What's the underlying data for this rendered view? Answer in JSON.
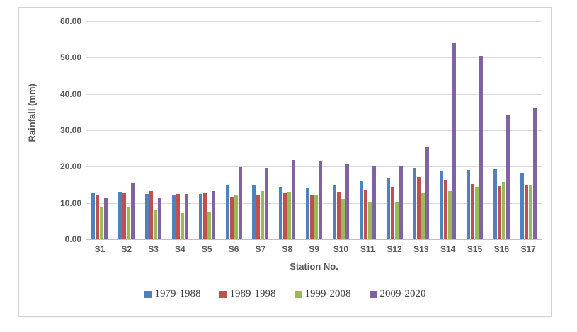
{
  "chart_data": {
    "type": "bar",
    "title": "",
    "xlabel": "Station No.",
    "ylabel": "Rainfall (mm)",
    "ylim": [
      0,
      60
    ],
    "ytick_labels": [
      "60.00",
      "50.00",
      "40.00",
      "30.00",
      "20.00",
      "10.00",
      "0.00"
    ],
    "grid": true,
    "legend_position": "bottom",
    "categories": [
      "S1",
      "S2",
      "S3",
      "S4",
      "S5",
      "S6",
      "S7",
      "S8",
      "S9",
      "S10",
      "S11",
      "S12",
      "S13",
      "S14",
      "S15",
      "S16",
      "S17"
    ],
    "series": [
      {
        "name": "1979-1988",
        "color": "#4F81BD",
        "values": [
          12.7,
          13.0,
          12.5,
          12.2,
          12.4,
          15.1,
          15.0,
          14.5,
          14.0,
          14.8,
          16.1,
          17.0,
          19.6,
          18.9,
          19.0,
          19.3,
          18.1
        ]
      },
      {
        "name": "1989-1998",
        "color": "#C0504D",
        "values": [
          12.3,
          12.7,
          13.3,
          12.4,
          12.8,
          11.7,
          12.2,
          12.6,
          12.0,
          13.0,
          13.4,
          14.5,
          17.2,
          16.3,
          15.2,
          14.6,
          15.0
        ]
      },
      {
        "name": "1999-2008",
        "color": "#9BBB59",
        "values": [
          8.9,
          9.0,
          7.9,
          7.3,
          7.4,
          12.0,
          13.3,
          13.1,
          12.2,
          11.2,
          10.1,
          10.3,
          12.7,
          13.2,
          14.4,
          15.8,
          15.0
        ]
      },
      {
        "name": "2009-2020",
        "color": "#8064A2",
        "values": [
          11.5,
          15.3,
          11.4,
          12.4,
          13.3,
          19.9,
          19.4,
          21.9,
          21.5,
          20.7,
          20.0,
          20.2,
          25.4,
          53.9,
          50.5,
          34.2,
          36.0
        ]
      }
    ]
  },
  "styles": {
    "gridline_color": "#D9D9D9",
    "baseline_color": "#BFBFBF",
    "frame_border_color": "#D3D3D3",
    "text_color": "#595959"
  }
}
